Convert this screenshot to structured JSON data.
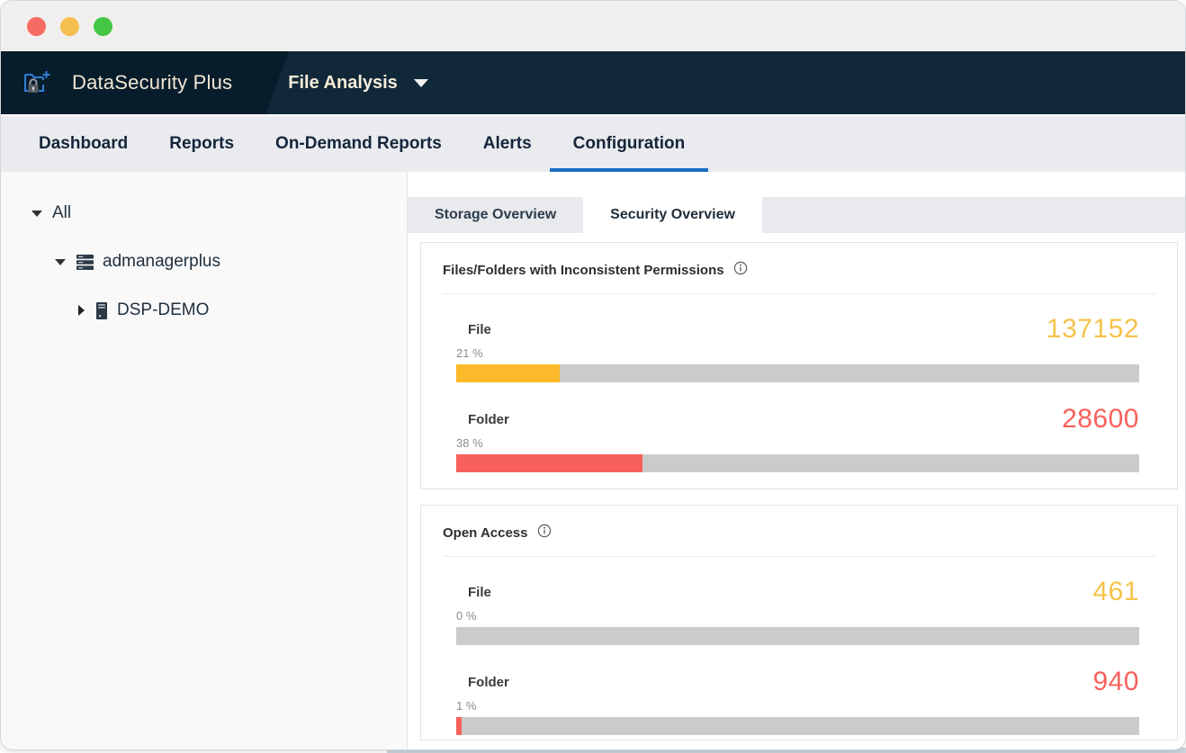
{
  "window": {
    "traffic_lights": [
      {
        "name": "close",
        "color": "#f76b62"
      },
      {
        "name": "minimize",
        "color": "#f4bf4f"
      },
      {
        "name": "zoom",
        "color": "#43c644"
      }
    ]
  },
  "header": {
    "app_name": "DataSecurity Plus",
    "module": "File Analysis"
  },
  "nav": {
    "items": [
      {
        "label": "Dashboard",
        "active": false
      },
      {
        "label": "Reports",
        "active": false
      },
      {
        "label": "On-Demand Reports",
        "active": false
      },
      {
        "label": "Alerts",
        "active": false
      },
      {
        "label": "Configuration",
        "active": true
      }
    ]
  },
  "sidebar": {
    "tree": [
      {
        "label": "All",
        "level": 0,
        "state": "expanded",
        "icon": null
      },
      {
        "label": "admanagerplus",
        "level": 1,
        "state": "expanded",
        "icon": "server-stack"
      },
      {
        "label": "DSP-DEMO",
        "level": 2,
        "state": "collapsed",
        "icon": "server-tower"
      }
    ]
  },
  "content": {
    "tabs": [
      {
        "label": "Storage Overview",
        "active": false
      },
      {
        "label": "Security Overview",
        "active": true
      }
    ],
    "panels": [
      {
        "title": "Files/Folders with Inconsistent Permissions",
        "rows": [
          {
            "label": "File",
            "value": "137152",
            "percent_label": "21 %",
            "percent_fill": 15.1,
            "bar_color": "#fcb92a",
            "value_color": "#f6c34a",
            "track_color": "#cbcbcb"
          },
          {
            "label": "Folder",
            "value": "28600",
            "percent_label": "38 %",
            "percent_fill": 27.3,
            "bar_color": "#f8615b",
            "value_color": "#f8615b",
            "track_color": "#cbcbcb"
          }
        ]
      },
      {
        "title": "Open Access",
        "rows": [
          {
            "label": "File",
            "value": "461",
            "percent_label": "0 %",
            "percent_fill": 0,
            "bar_color": "#fcb92a",
            "value_color": "#f6c34a",
            "track_color": "#cbcbcb"
          },
          {
            "label": "Folder",
            "value": "940",
            "percent_label": "1 %",
            "percent_fill": 0.8,
            "bar_color": "#f8615b",
            "value_color": "#f8615b",
            "track_color": "#cbcbcb"
          }
        ]
      }
    ]
  },
  "chart_data": [
    {
      "type": "bar",
      "title": "Files/Folders with Inconsistent Permissions",
      "categories": [
        "File",
        "Folder"
      ],
      "values": [
        137152,
        28600
      ],
      "percentages": [
        21,
        38
      ],
      "colors": [
        "#fcb92a",
        "#f8615b"
      ],
      "xlabel": "",
      "ylabel": "",
      "orientation": "horizontal",
      "xlim_pct": [
        0,
        100
      ]
    },
    {
      "type": "bar",
      "title": "Open Access",
      "categories": [
        "File",
        "Folder"
      ],
      "values": [
        461,
        940
      ],
      "percentages": [
        0,
        1
      ],
      "colors": [
        "#fcb92a",
        "#f8615b"
      ],
      "xlabel": "",
      "ylabel": "",
      "orientation": "horizontal",
      "xlim_pct": [
        0,
        100
      ]
    }
  ]
}
